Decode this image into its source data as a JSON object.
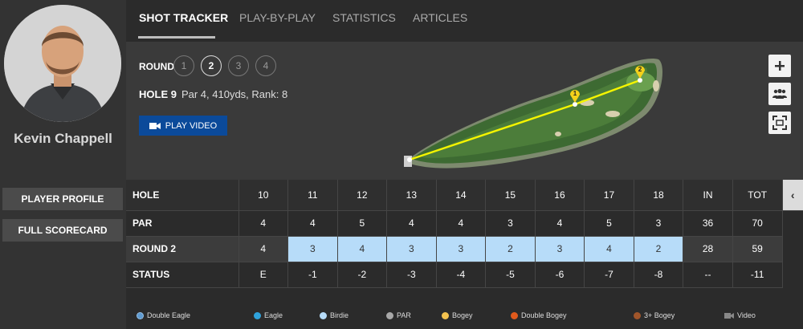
{
  "player": {
    "name": "Kevin Chappell",
    "buttons": [
      "PLAYER PROFILE",
      "FULL SCORECARD"
    ]
  },
  "tabs": [
    "SHOT TRACKER",
    "PLAY-BY-PLAY",
    "STATISTICS",
    "ARTICLES"
  ],
  "round": {
    "label": "ROUND",
    "options": [
      "1",
      "2",
      "3",
      "4"
    ],
    "selected": "2"
  },
  "hole": {
    "title": "HOLE 9",
    "details": "Par 4, 410yds, Rank: 8"
  },
  "video_button": "PLAY VIDEO",
  "map_controls": [
    "plus-icon",
    "group-icon",
    "fullscreen-icon"
  ],
  "shot_markers": [
    "1",
    "2"
  ],
  "scorecard": {
    "header": [
      "HOLE",
      "10",
      "11",
      "12",
      "13",
      "14",
      "15",
      "16",
      "17",
      "18",
      "IN",
      "TOT"
    ],
    "par": [
      "PAR",
      "4",
      "4",
      "5",
      "4",
      "4",
      "3",
      "4",
      "5",
      "3",
      "36",
      "70"
    ],
    "round2": [
      "ROUND 2",
      "4",
      "3",
      "4",
      "3",
      "3",
      "2",
      "3",
      "4",
      "2",
      "28",
      "59"
    ],
    "status": [
      "STATUS",
      "E",
      "-1",
      "-2",
      "-3",
      "-4",
      "-5",
      "-6",
      "-7",
      "-8",
      "--",
      "-11"
    ],
    "collapse_icon": "‹"
  },
  "legend": [
    {
      "label": "Double Eagle",
      "color": "#5f9bd1"
    },
    {
      "label": "Eagle",
      "color": "#2fa3dc"
    },
    {
      "label": "Birdie",
      "color": "#b7dcf9"
    },
    {
      "label": "PAR",
      "color": "#a8a8a8"
    },
    {
      "label": "Bogey",
      "color": "#f3c24f"
    },
    {
      "label": "Double Bogey",
      "color": "#e05a1c"
    },
    {
      "label": "3+ Bogey",
      "color": "#a0552a"
    },
    {
      "label": "Video",
      "color": "#888888"
    }
  ]
}
